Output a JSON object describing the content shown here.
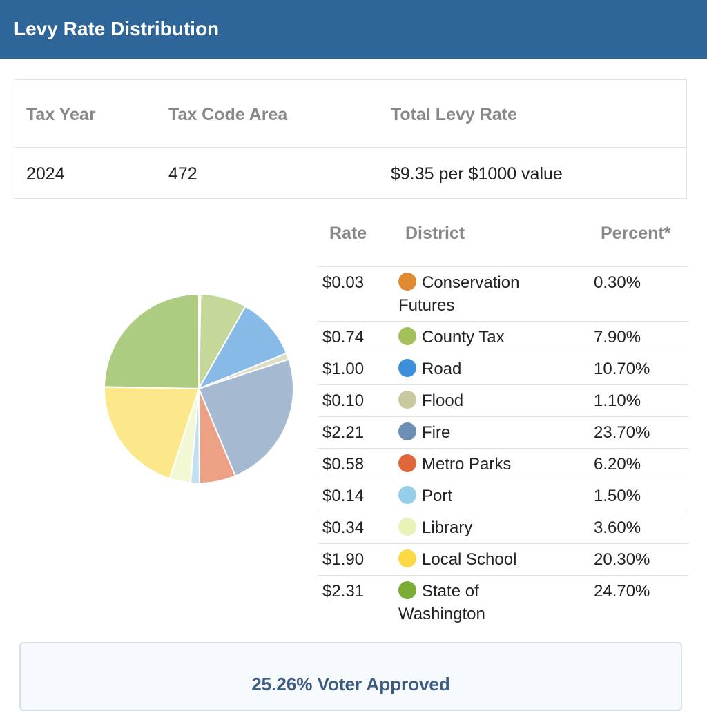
{
  "header": {
    "title": "Levy Rate Distribution"
  },
  "summary": {
    "headers": [
      "Tax Year",
      "Tax Code Area",
      "Total Levy Rate"
    ],
    "row": [
      "2024",
      "472",
      "$9.35 per $1000 value"
    ]
  },
  "levy_table": {
    "headers": [
      "Rate",
      "District",
      "Percent*"
    ]
  },
  "chart_data": {
    "type": "pie",
    "categories": [
      "Conservation Futures",
      "County Tax",
      "Road",
      "Flood",
      "Fire",
      "Metro Parks",
      "Port",
      "Library",
      "Local School",
      "State of Washington"
    ],
    "rates": [
      "$0.03",
      "$0.74",
      "$1.00",
      "$0.10",
      "$2.21",
      "$0.58",
      "$0.14",
      "$0.34",
      "$1.90",
      "$2.31"
    ],
    "values": [
      0.3,
      7.9,
      10.7,
      1.1,
      23.7,
      6.2,
      1.5,
      3.6,
      20.3,
      24.7
    ],
    "value_labels": [
      "0.30%",
      "7.90%",
      "10.70%",
      "1.10%",
      "23.70%",
      "6.20%",
      "1.50%",
      "3.60%",
      "20.30%",
      "24.70%"
    ],
    "colors": [
      "#e08a32",
      "#a3c05a",
      "#3d8fd9",
      "#c8c9a0",
      "#6e8fb3",
      "#e0673a",
      "#96cde8",
      "#e9f3b8",
      "#fbd844",
      "#7bac35"
    ]
  },
  "footer": {
    "text": "25.26% Voter Approved"
  }
}
